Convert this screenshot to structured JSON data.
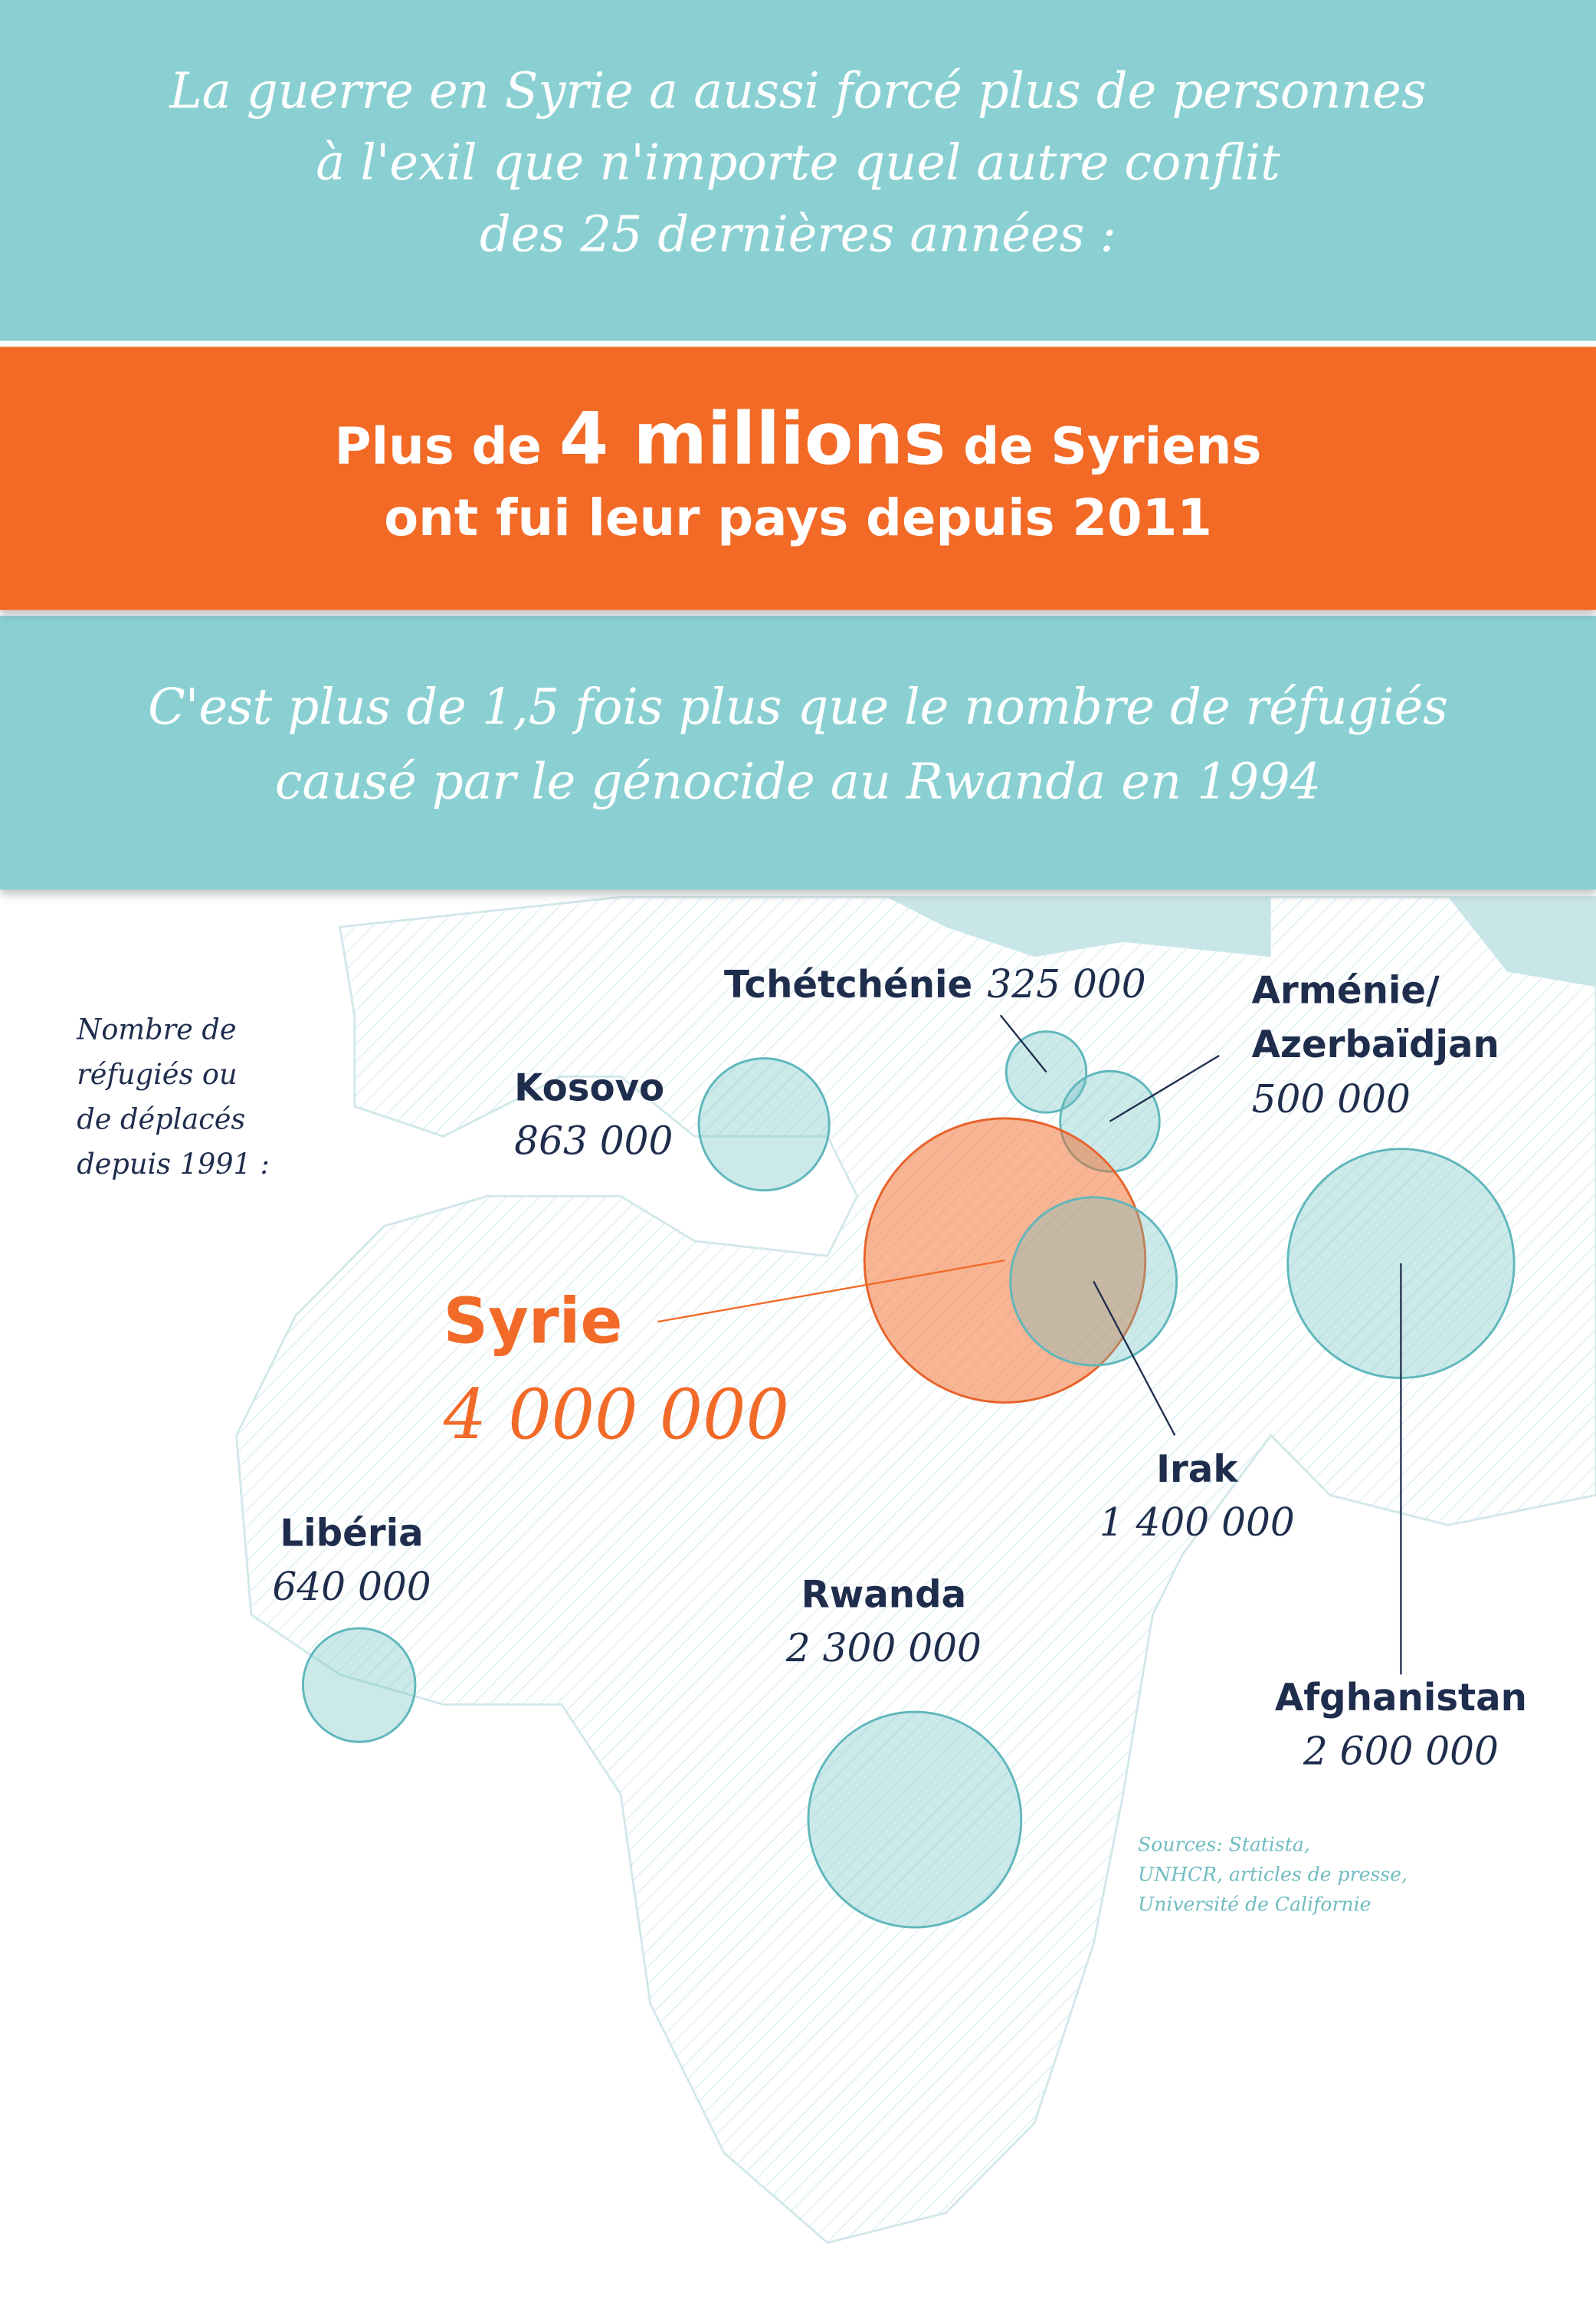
{
  "header": {
    "lines": [
      "La guerre en Syrie a aussi forcé plus de personnes",
      "à l'exil que n'importe quel autre conflit",
      "des 25 dernières années :"
    ]
  },
  "banner": {
    "line1": [
      "Plus de ",
      "4 millions",
      " de Syriens"
    ],
    "line2": "ont fui leur pays depuis 2011"
  },
  "subtitle": {
    "lines": [
      "C'est plus de 1,5 fois plus que le nombre de réfugiés",
      "causé par le génocide au Rwanda en 1994"
    ]
  },
  "legend_note": {
    "lines": [
      "Nombre de",
      "réfugiés ou",
      "de déplacés",
      "depuis 1991 :"
    ]
  },
  "regions": [
    {
      "name": "Tchétchénie",
      "value": 325000,
      "value_label": "325 000"
    },
    {
      "name": "Kosovo",
      "value": 863000,
      "value_label": "863 000"
    },
    {
      "name_lines": [
        "Arménie/",
        "Azerbaïdjan"
      ],
      "value": 500000,
      "value_label": "500 000"
    },
    {
      "name": "Syrie",
      "value": 4000000,
      "value_label": "4 000 000"
    },
    {
      "name": "Irak",
      "value": 1400000,
      "value_label": "1 400 000"
    },
    {
      "name": "Afghanistan",
      "value": 2600000,
      "value_label": "2 600 000"
    },
    {
      "name": "Libéria",
      "value": 640000,
      "value_label": "640 000"
    },
    {
      "name": "Rwanda",
      "value": 2300000,
      "value_label": "2 300 000"
    }
  ],
  "sources": {
    "lines": [
      "Sources: Statista,",
      "UNHCR, articles de presse,",
      "Université de Californie"
    ]
  }
}
